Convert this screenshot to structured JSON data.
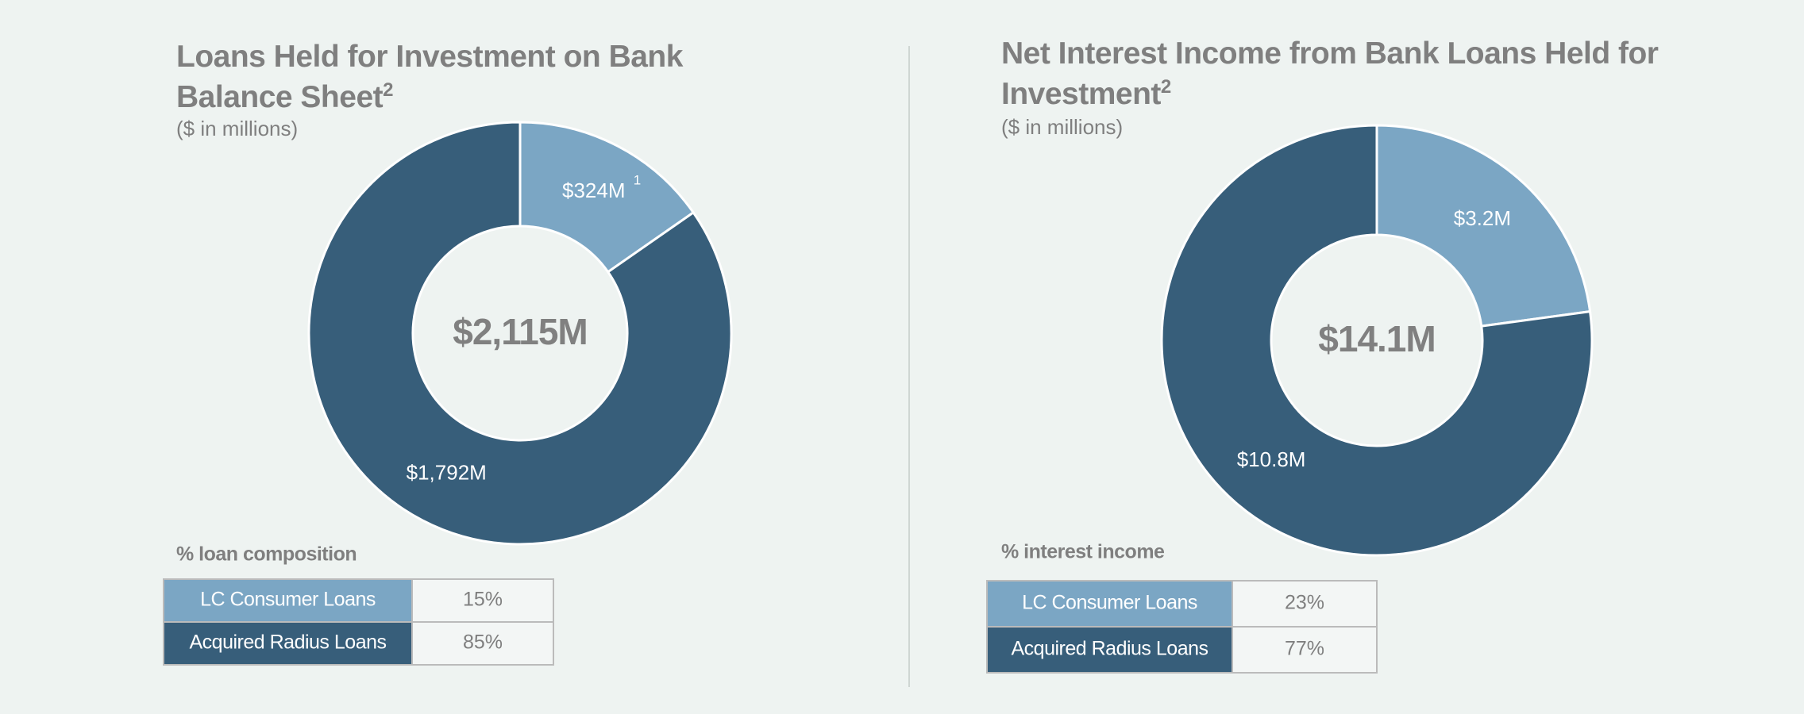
{
  "chart_data": [
    {
      "type": "pie",
      "title": "Loans Held for Investment on Bank Balance Sheet",
      "title_note": "2",
      "subtitle": "($ in millions)",
      "categories": [
        "LC Consumer Loans",
        "Acquired Radius Loans"
      ],
      "colors": [
        "#7ba6c4",
        "#375e7a"
      ],
      "values": [
        324,
        1792
      ],
      "value_labels": [
        "$324M",
        "$1,792M"
      ],
      "note": "1",
      "total": 2115,
      "total_label": "$2,115M",
      "table_title": "% loan composition",
      "shares": [
        15,
        85
      ],
      "share_labels": [
        "15%",
        "85%"
      ]
    },
    {
      "type": "pie",
      "title": "Net Interest Income from Bank Loans Held for Investment",
      "title_note": "2",
      "subtitle": "($ in millions)",
      "categories": [
        "LC Consumer Loans",
        "Acquired Radius Loans"
      ],
      "colors": [
        "#7ba6c4",
        "#375e7a"
      ],
      "values": [
        3.2,
        10.8
      ],
      "value_labels": [
        "$3.2M",
        "$10.8M"
      ],
      "total": 14.1,
      "total_label": "$14.1M",
      "table_title": "% interest income",
      "shares": [
        23,
        77
      ],
      "share_labels": [
        "23%",
        "77%"
      ]
    }
  ]
}
